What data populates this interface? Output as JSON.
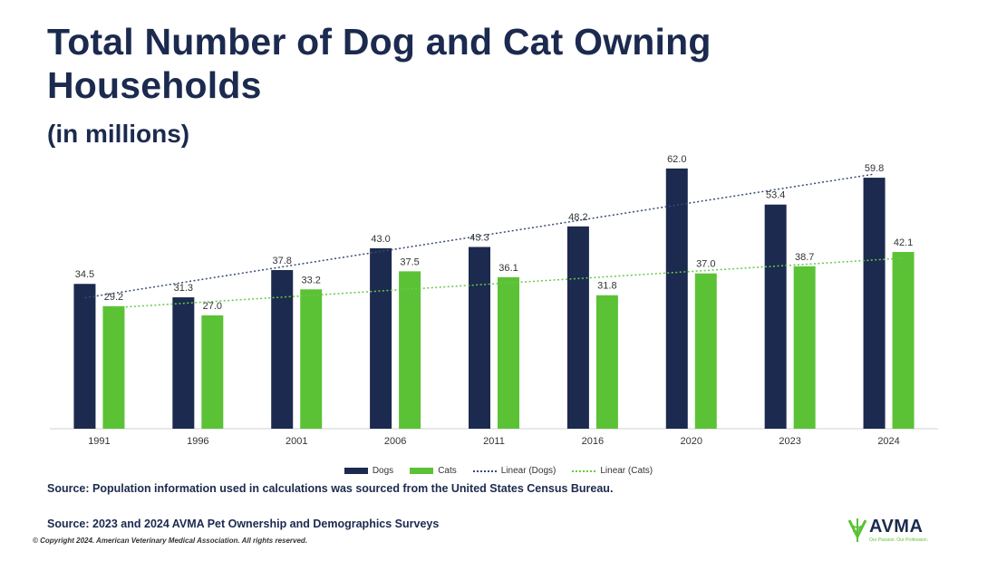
{
  "title": "Total Number of Dog and Cat Owning Households",
  "subtitle": "(in millions)",
  "colors": {
    "dogs": "#1b2a4e",
    "cats": "#5bc236",
    "trend_dogs": "#3a4a78",
    "trend_cats": "#6ac84a"
  },
  "chart_data": {
    "type": "bar",
    "categories": [
      "1991",
      "1996",
      "2001",
      "2006",
      "2011",
      "2016",
      "2020",
      "2023",
      "2024"
    ],
    "series": [
      {
        "name": "Dogs",
        "values": [
          34.5,
          31.3,
          37.8,
          43.0,
          43.3,
          48.2,
          62.0,
          53.4,
          59.8
        ]
      },
      {
        "name": "Cats",
        "values": [
          29.2,
          27.0,
          33.2,
          37.5,
          36.1,
          31.8,
          37.0,
          38.7,
          42.1
        ]
      }
    ],
    "trendlines": [
      {
        "name": "Linear (Dogs)",
        "series": "Dogs",
        "style": "dotted"
      },
      {
        "name": "Linear (Cats)",
        "series": "Cats",
        "style": "dotted"
      }
    ],
    "ylim": [
      0,
      65
    ],
    "grid": false,
    "legend_position": "bottom"
  },
  "legend": {
    "dogs": "Dogs",
    "cats": "Cats",
    "linear_dogs": "Linear (Dogs)",
    "linear_cats": "Linear (Cats)"
  },
  "sources": {
    "line1": "Source: Population information used in calculations was sourced from the United States Census Bureau.",
    "line2": "Source: 2023 and 2024 AVMA Pet Ownership and Demographics Surveys"
  },
  "copyright": "© Copyright 2024. American Veterinary Medical Association. All rights reserved.",
  "logo": {
    "text": "AVMA",
    "tagline": "Our Passion. Our Profession.",
    "icon": "caduceus-icon"
  }
}
